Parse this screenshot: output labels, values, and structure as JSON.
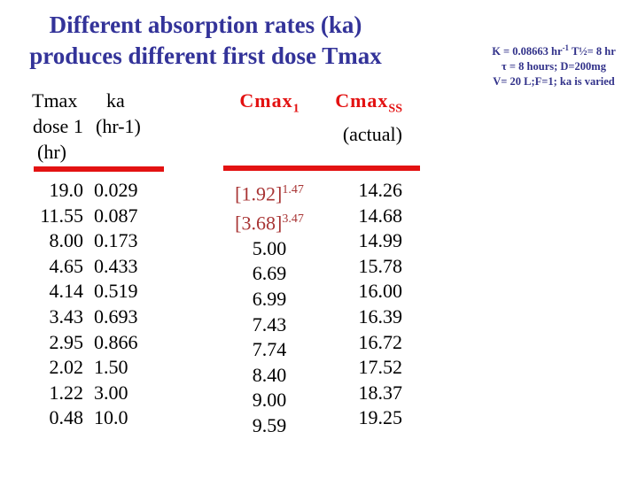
{
  "slide": {
    "kind": "presentation-slide",
    "background": "#ffffff"
  },
  "title": {
    "line1": "Different absorption rates (ka)",
    "line2": "produces different first dose Tmax"
  },
  "params_note": {
    "line1_pre": "K = 0.08663 hr",
    "line1_sup": "-1",
    "line1_post": " T½= 8 hr",
    "line2": "τ = 8 hours; D=200mg",
    "line3": "V= 20 L;F=1; ka is varied"
  },
  "table": {
    "header": {
      "col1_lines": [
        "Tmax",
        "dose 1",
        "(hr)"
      ],
      "col2_lines": [
        "ka",
        "(hr-1)"
      ],
      "col3_label": "Cmax",
      "col3_sub": "1",
      "col4_label": "Cmax",
      "col4_sub": "SS",
      "col4_note": "(actual)"
    },
    "rows": [
      {
        "tmax": "19.0",
        "ka": "0.029",
        "cmax1": "[1.92]",
        "cmax1_sup": "1.47",
        "cmaxss": "14.26"
      },
      {
        "tmax": "11.55",
        "ka": "0.087",
        "cmax1": "[3.68]",
        "cmax1_sup": "3.47",
        "cmaxss": "14.68"
      },
      {
        "tmax": "8.00",
        "ka": "0.173",
        "cmax1": "5.00",
        "cmax1_sup": "",
        "cmaxss": "14.99"
      },
      {
        "tmax": "4.65",
        "ka": "0.433",
        "cmax1": "6.69",
        "cmax1_sup": "",
        "cmaxss": "15.78"
      },
      {
        "tmax": "4.14",
        "ka": "0.519",
        "cmax1": "6.99",
        "cmax1_sup": "",
        "cmaxss": "16.00"
      },
      {
        "tmax": "3.43",
        "ka": "0.693",
        "cmax1": "7.43",
        "cmax1_sup": "",
        "cmaxss": "16.39"
      },
      {
        "tmax": "2.95",
        "ka": "0.866",
        "cmax1": "7.74",
        "cmax1_sup": "",
        "cmaxss": "16.72"
      },
      {
        "tmax": "2.02",
        "ka": "1.50",
        "cmax1": "8.40",
        "cmax1_sup": "",
        "cmaxss": "17.52"
      },
      {
        "tmax": "1.22",
        "ka": "3.00",
        "cmax1": "9.00",
        "cmax1_sup": "",
        "cmaxss": "18.37"
      },
      {
        "tmax": "0.48",
        "ka": "10.0",
        "cmax1": "9.59",
        "cmax1_sup": "",
        "cmaxss": "19.25"
      }
    ]
  },
  "colors": {
    "title_blue": "#333399",
    "note_navy": "#32328a",
    "accent_red": "#e31212",
    "bracket_red": "#a83434",
    "text_black": "#000000",
    "background": "#ffffff"
  }
}
